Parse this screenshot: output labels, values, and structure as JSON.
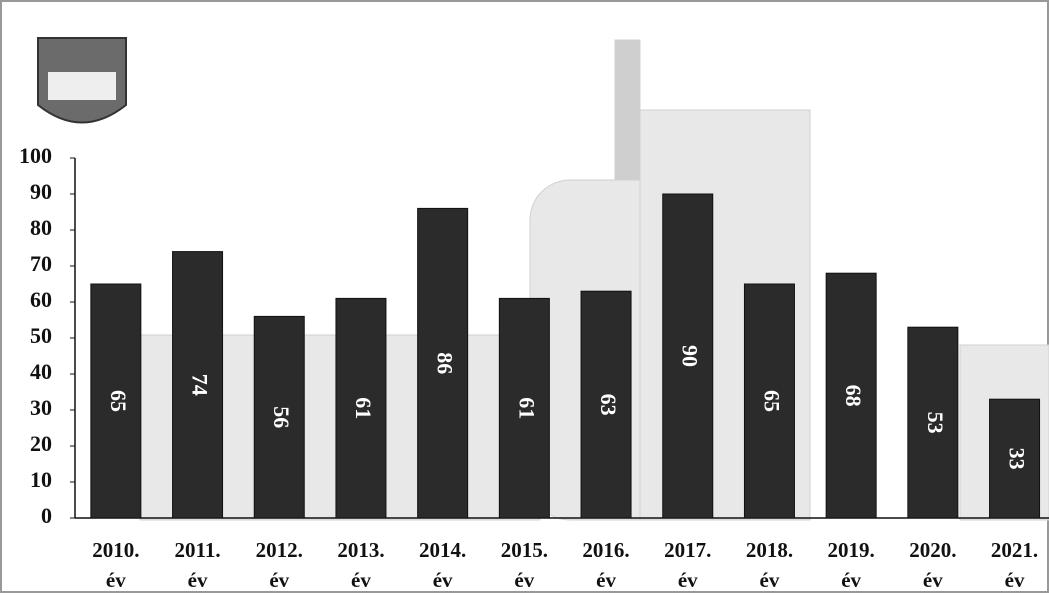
{
  "chart_data": {
    "type": "bar",
    "categories": [
      "2010. év",
      "2011. év",
      "2012. év",
      "2013. év",
      "2014. év",
      "2015. év",
      "2016. év",
      "2017. év",
      "2018. év",
      "2019. év",
      "2020. év",
      "2021. év"
    ],
    "values": [
      65,
      74,
      56,
      61,
      86,
      61,
      63,
      90,
      65,
      68,
      53,
      33
    ],
    "color": "#2b2b2b",
    "ylim": [
      0,
      100
    ],
    "yticks": [
      0,
      10,
      20,
      30,
      40,
      50,
      60,
      70,
      80,
      90,
      100
    ],
    "grid": false
  }
}
